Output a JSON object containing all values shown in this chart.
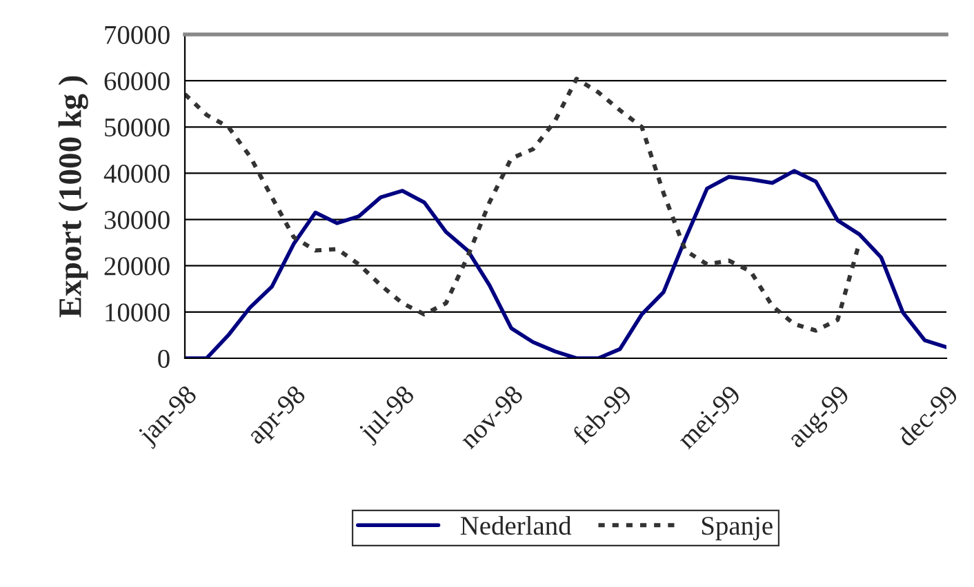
{
  "chart_data": {
    "type": "line",
    "ylabel": "Export (1000 kg )",
    "categories": [
      "jan-98",
      null,
      null,
      null,
      null,
      "apr-98",
      null,
      null,
      null,
      null,
      "jul-98",
      null,
      null,
      null,
      null,
      "nov-98",
      null,
      null,
      null,
      null,
      "feb-99",
      null,
      null,
      null,
      null,
      "mei-99",
      null,
      null,
      null,
      null,
      "aug-99",
      null,
      null,
      null,
      null,
      "dec-99"
    ],
    "series": [
      {
        "name": "Nederland",
        "color": "#000080",
        "line_style": "solid",
        "values": [
          0,
          0,
          5000,
          11000,
          15500,
          24700,
          31500,
          29200,
          30700,
          34800,
          36200,
          33700,
          27300,
          23300,
          15800,
          6500,
          3500,
          1500,
          0,
          0,
          2000,
          9500,
          14300,
          25800,
          36700,
          39200,
          38700,
          37900,
          40500,
          38200,
          29800,
          26800,
          21800,
          9900,
          3900,
          2400
        ]
      },
      {
        "name": "Spanje",
        "color": "#333333",
        "line_style": "dashed",
        "values": [
          57100,
          52600,
          50000,
          43600,
          34800,
          26200,
          23300,
          23600,
          20300,
          15800,
          11900,
          9500,
          11900,
          22000,
          33700,
          43200,
          45200,
          51200,
          60400,
          57500,
          53600,
          50000,
          35700,
          23300,
          20300,
          21100,
          18800,
          11300,
          7400,
          6000,
          8300,
          25000,
          null,
          null,
          null,
          null
        ]
      }
    ],
    "ylim": [
      0,
      70000
    ],
    "yticks": [
      0,
      10000,
      20000,
      30000,
      40000,
      50000,
      60000,
      70000
    ],
    "grid": "y",
    "legend": "bottom"
  }
}
